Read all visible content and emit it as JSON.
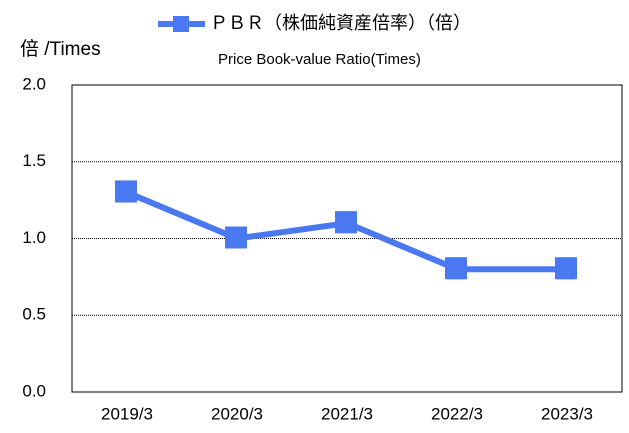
{
  "chart_data": {
    "type": "line",
    "legend_title": "ＰＢＲ（株価純資産倍率）（倍）",
    "subtitle": "Price Book-value Ratio(Times)",
    "y_label": "倍 /Times",
    "categories": [
      "2019/3",
      "2020/3",
      "2021/3",
      "2022/3",
      "2023/3"
    ],
    "series": [
      {
        "name": "ＰＢＲ（株価純資産倍率）（倍）",
        "color": "#4a78f0",
        "values": [
          1.3,
          1.0,
          1.1,
          0.8,
          0.8
        ]
      }
    ],
    "ylim": [
      0,
      2
    ],
    "yticks": [
      {
        "value": 0,
        "label": "0.0"
      },
      {
        "value": 0.5,
        "label": "0.5"
      },
      {
        "value": 1,
        "label": "1.0"
      },
      {
        "value": 1.5,
        "label": "1.5"
      },
      {
        "value": 2,
        "label": "2.0"
      }
    ],
    "grid": true
  }
}
